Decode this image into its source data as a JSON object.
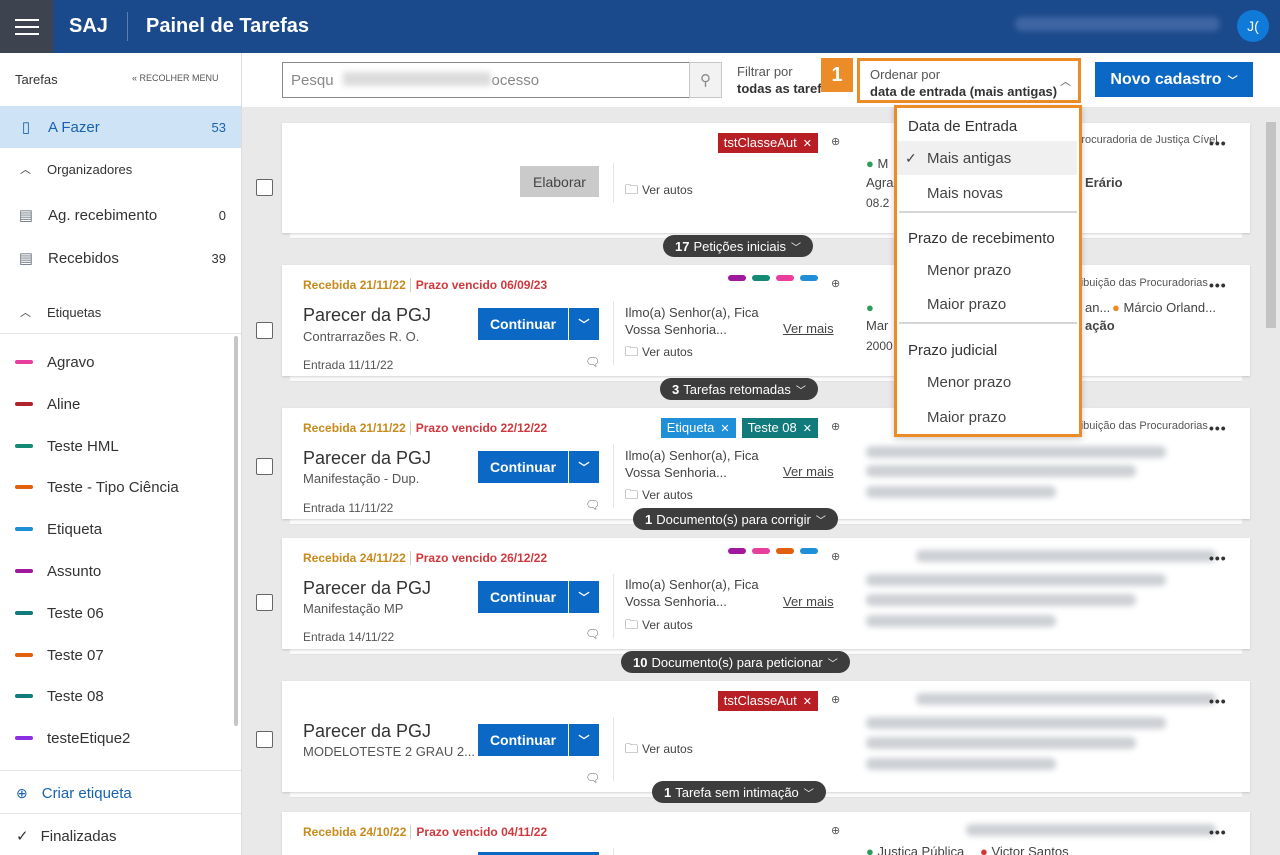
{
  "header": {
    "brand": "SAJ",
    "title": "Painel de Tarefas",
    "avatar_initials": "J("
  },
  "sidebar": {
    "heading": "Tarefas",
    "collapse_label": "RECOLHER MENU",
    "todo": {
      "label": "A Fazer",
      "count": "53"
    },
    "organizers": {
      "label": "Organizadores"
    },
    "ag_receb": {
      "label": "Ag. recebimento",
      "count": "0"
    },
    "recebidos": {
      "label": "Recebidos",
      "count": "39"
    },
    "labels_section": {
      "label": "Etiquetas"
    },
    "tags": [
      {
        "label": "Agravo",
        "color": "#e83e9e"
      },
      {
        "label": "Aline",
        "color": "#b0232a"
      },
      {
        "label": "Teste HML",
        "color": "#138a73"
      },
      {
        "label": "Teste - Tipo Ciência",
        "color": "#e0600f"
      },
      {
        "label": "Etiqueta",
        "color": "#1f8fd8"
      },
      {
        "label": "Assunto",
        "color": "#a0189e"
      },
      {
        "label": "Teste 06",
        "color": "#117a7a"
      },
      {
        "label": "Teste 07",
        "color": "#e0600f"
      },
      {
        "label": "Teste 08",
        "color": "#117a7a"
      },
      {
        "label": "testeEtique2",
        "color": "#8b2fe0"
      }
    ],
    "create_tag": "Criar etiqueta",
    "finished": "Finalizadas"
  },
  "toolbar": {
    "search_placeholder_start": "Pesqu",
    "search_placeholder_end": "ocesso",
    "filter_label": "Filtrar por",
    "filter_value": "todas as taref",
    "order_label": "Ordenar por",
    "order_value": "data de entrada (mais antigas)",
    "callout_number": "1",
    "new_button": "Novo cadastro"
  },
  "dropdown": {
    "group1": "Data de Entrada",
    "g1_opt1": "Mais antigas",
    "g1_opt2": "Mais novas",
    "group2": "Prazo de recebimento",
    "g2_opt1": "Menor prazo",
    "g2_opt2": "Maior prazo",
    "group3": "Prazo judicial",
    "g3_opt1": "Menor prazo",
    "g3_opt2": "Maior prazo"
  },
  "cards": {
    "c1": {
      "tag": "tstClasseAut",
      "tag_color": "#b81f25",
      "button": "Elaborar",
      "autos": "Ver autos",
      "right_top": "Procuradoria de Justiça Cível",
      "right_l1": "M",
      "right_l2": "Agra",
      "right_l2b": "Erário",
      "right_l3": "08.2",
      "pill_count": "17",
      "pill_text": "Petições iniciais"
    },
    "c2": {
      "recv": "Recebida 21/11/22",
      "prazo": "Prazo vencido 06/09/23",
      "dot_colors": [
        "#a0189e",
        "#138a73",
        "#e83e9e",
        "#1f8fd8"
      ],
      "title": "Parecer da PGJ",
      "sub": "Contrarrazões R. O.",
      "entry": "Entrada 11/11/22",
      "button": "Continuar",
      "desc1": "Ilmo(a) Senhor(a), Fica",
      "desc2": "Vossa Senhoria...",
      "more": "Ver mais",
      "autos": "Ver autos",
      "right_top": "tribuição das Procuradorias",
      "right_l1b": "an...",
      "right_person": "Márcio Orland...",
      "right_l2": "Mar",
      "right_l2b": "ação",
      "right_l3": "2000",
      "pill_count": "3",
      "pill_text": "Tarefas retomadas"
    },
    "c3": {
      "recv": "Recebida 21/11/22",
      "prazo": "Prazo vencido 22/12/22",
      "tag1": "Etiqueta",
      "tag1_color": "#1f8fd8",
      "tag2": "Teste 08",
      "tag2_color": "#117a7a",
      "title": "Parecer da PGJ",
      "sub": "Manifestação - Dup.",
      "entry": "Entrada 11/11/22",
      "button": "Continuar",
      "desc1": "Ilmo(a) Senhor(a), Fica",
      "desc2": "Vossa Senhoria...",
      "more": "Ver mais",
      "autos": "Ver autos",
      "right_top": "tribuição das Procuradorias",
      "pill_count": "1",
      "pill_text": "Documento(s) para corrigir"
    },
    "c4": {
      "recv": "Recebida 24/11/22",
      "prazo": "Prazo vencido 26/12/22",
      "dot_colors": [
        "#a0189e",
        "#e83e9e",
        "#e0600f",
        "#1f8fd8"
      ],
      "title": "Parecer da PGJ",
      "sub": "Manifestação MP",
      "entry": "Entrada 14/11/22",
      "button": "Continuar",
      "desc1": "Ilmo(a) Senhor(a), Fica",
      "desc2": "Vossa Senhoria...",
      "more": "Ver mais",
      "autos": "Ver autos",
      "pill_count": "10",
      "pill_text": "Documento(s) para peticionar"
    },
    "c5": {
      "tag": "tstClasseAut",
      "tag_color": "#b81f25",
      "title": "Parecer da PGJ",
      "sub": "MODELOTESTE 2 GRAU 2...",
      "button": "Continuar",
      "autos": "Ver autos",
      "pill_count": "1",
      "pill_text": "Tarefa sem intimação"
    },
    "c6": {
      "recv": "Recebida 24/10/22",
      "prazo": "Prazo vencido 04/11/22",
      "right_person1": "Justiça Pública",
      "right_person2": "Victor Santos"
    }
  }
}
